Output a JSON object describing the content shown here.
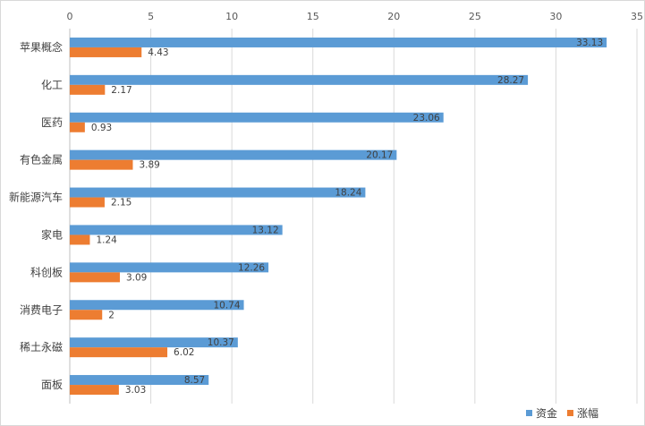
{
  "chart_data": {
    "type": "bar",
    "orientation": "horizontal",
    "categories": [
      "苹果概念",
      "化工",
      "医药",
      "有色金属",
      "新能源汽车",
      "家电",
      "科创板",
      "消费电子",
      "稀土永磁",
      "面板"
    ],
    "series": [
      {
        "name": "资金",
        "color": "#5b9bd5",
        "values": [
          33.13,
          28.27,
          23.06,
          20.17,
          18.24,
          13.12,
          12.26,
          10.74,
          10.37,
          8.57
        ],
        "labels": [
          "33.13",
          "28.27",
          "23.06",
          "20.17",
          "18.24",
          "13.12",
          "12.26",
          "10.74",
          "10.37",
          "8.57"
        ]
      },
      {
        "name": "涨幅",
        "color": "#ed7d31",
        "values": [
          4.43,
          2.17,
          0.93,
          3.89,
          2.15,
          1.24,
          3.09,
          2,
          6.02,
          3.03
        ],
        "labels": [
          "4.43",
          "2.17",
          "0.93",
          "3.89",
          "2.15",
          "1.24",
          "3.09",
          "2",
          "6.02",
          "3.03"
        ]
      }
    ],
    "x_ticks": [
      "0",
      "5",
      "10",
      "15",
      "20",
      "25",
      "30",
      "35"
    ],
    "xlim": [
      0,
      35
    ],
    "x_axis_position": "top",
    "grid": true,
    "legend_position": "bottom-right",
    "title": "",
    "xlabel": "",
    "ylabel": ""
  }
}
